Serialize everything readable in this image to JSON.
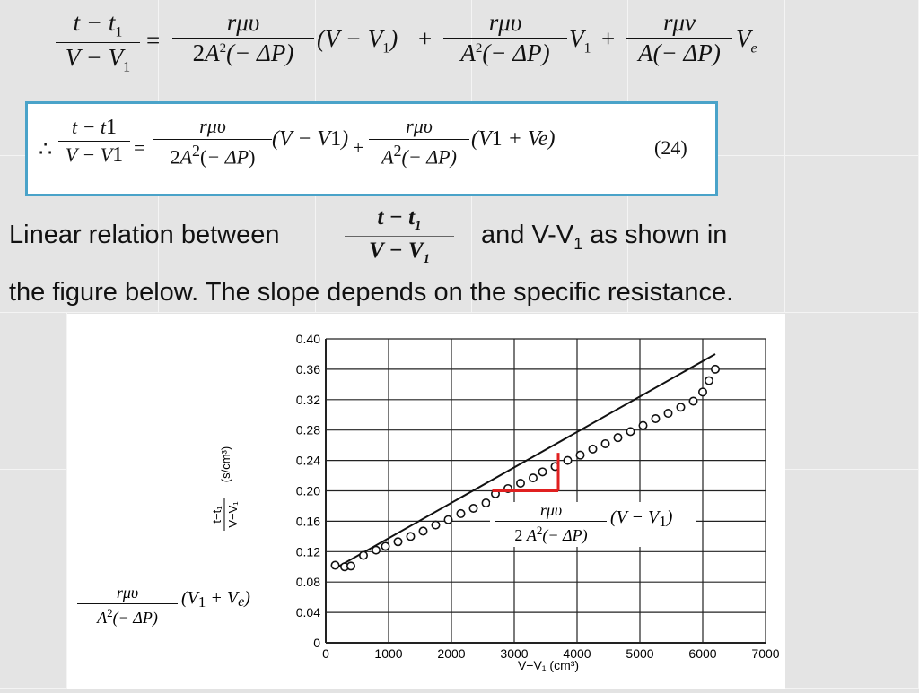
{
  "top_equation": {
    "lhs_num": "t − t",
    "lhs_num_sub": "1",
    "lhs_den": "V − V",
    "lhs_den_sub": "1",
    "eq": "=",
    "t1_num": "rμυ",
    "t1_den": "2A",
    "t1_den_sup": "2",
    "t1_den_tail": "(− ΔP)",
    "t1_factor": "(V − V",
    "t1_factor_sub": "1",
    "t1_factor_close": ")",
    "plus1": "+",
    "t2_num": "rμυ",
    "t2_den": "A",
    "t2_den_sup": "2",
    "t2_den_tail": "(− ΔP)",
    "t2_factor": "V",
    "t2_factor_sub": "1",
    "plus2": "+",
    "t3_num": "rμν",
    "t3_den": "A(− ΔP)",
    "t3_factor": "V",
    "t3_factor_sub": "e"
  },
  "boxed_equation": {
    "therefore": "∴",
    "lhs_num": "t − t",
    "lhs_num_sub": "1",
    "lhs_den": "V − V",
    "lhs_den_sub": "1",
    "eq": "=",
    "t1_num": "rμυ",
    "t1_den": "2A",
    "t1_den_sup": "2",
    "t1_den_tail": "(− ΔP)",
    "t1_factor": "(V − V",
    "t1_factor_sub": "1",
    "t1_factor_close": ")",
    "plus": "+",
    "t2_num": "rμυ",
    "t2_den": "A",
    "t2_den_sup": "2",
    "t2_den_tail": "(− ΔP)",
    "t2_factor": "(V",
    "t2_factor_sub": "1",
    "t2_factor_tail": " + V",
    "t2_factor_sub2": "e",
    "t2_factor_close": ")",
    "eq_number": "(24)"
  },
  "text": {
    "line1_a": "Linear relation between",
    "inline_num": "t − t",
    "inline_num_sub": "1",
    "inline_den": "V − V",
    "inline_den_sub": "1",
    "line1_b": "and V-V",
    "line1_b_sub": "1",
    "line1_c": " as shown in",
    "line2": "the figure below. The slope depends on the specific resistance."
  },
  "annotations": {
    "slope_num": "rμυ",
    "slope_den": "2 A",
    "slope_den_sup": "2",
    "slope_den_tail": "(− ΔP)",
    "slope_factor": "(V − V",
    "slope_factor_sub": "1",
    "slope_factor_close": ")",
    "intercept_num": "rμυ",
    "intercept_den": "A",
    "intercept_den_sup": "2",
    "intercept_den_tail": "(− ΔP)",
    "intercept_factor": "(V",
    "intercept_factor_sub": "1",
    "intercept_factor_tail": " + V",
    "intercept_factor_sub2": "e",
    "intercept_factor_close": ")",
    "slope_marker_color": "#e02020"
  },
  "chart_data": {
    "type": "scatter",
    "xlabel": "V−V₁ (cm³)",
    "ylabel_num": "t−t₁",
    "ylabel_den": "V−V₁",
    "ylabel_unit": "(s/cm³)",
    "xlim": [
      0,
      7000
    ],
    "ylim": [
      0,
      0.4
    ],
    "xticks": [
      0,
      1000,
      2000,
      3000,
      4000,
      5000,
      6000,
      7000
    ],
    "xtick_labels": [
      "0",
      "1000",
      "2000",
      "3000",
      "4000",
      "5000",
      "6000",
      "7000"
    ],
    "yticks": [
      0,
      0.04,
      0.08,
      0.12,
      0.16,
      0.2,
      0.24,
      0.28,
      0.32,
      0.36,
      0.4
    ],
    "ytick_labels": [
      "0",
      "0.04",
      "0.08",
      "0.12",
      "0.16",
      "0.20",
      "0.24",
      "0.28",
      "0.32",
      "0.36",
      "0.40"
    ],
    "grid": true,
    "points": {
      "x": [
        150,
        300,
        400,
        600,
        800,
        950,
        1150,
        1350,
        1550,
        1750,
        1950,
        2150,
        2350,
        2550,
        2700,
        2900,
        3100,
        3300,
        3450,
        3650,
        3850,
        4050,
        4250,
        4450,
        4650,
        4850,
        5050,
        5250,
        5450,
        5650,
        5850,
        6000,
        6100,
        6200
      ],
      "y": [
        0.102,
        0.1,
        0.101,
        0.115,
        0.122,
        0.127,
        0.133,
        0.14,
        0.147,
        0.155,
        0.162,
        0.17,
        0.177,
        0.184,
        0.196,
        0.203,
        0.21,
        0.217,
        0.225,
        0.232,
        0.24,
        0.247,
        0.255,
        0.262,
        0.27,
        0.278,
        0.286,
        0.295,
        0.302,
        0.31,
        0.318,
        0.33,
        0.345,
        0.36
      ]
    },
    "fit_line": {
      "x": [
        150,
        6200
      ],
      "y": [
        0.098,
        0.38
      ]
    },
    "slope_triangle": {
      "x1": 2650,
      "x2": 3700,
      "y1": 0.2,
      "y2": 0.25
    }
  }
}
